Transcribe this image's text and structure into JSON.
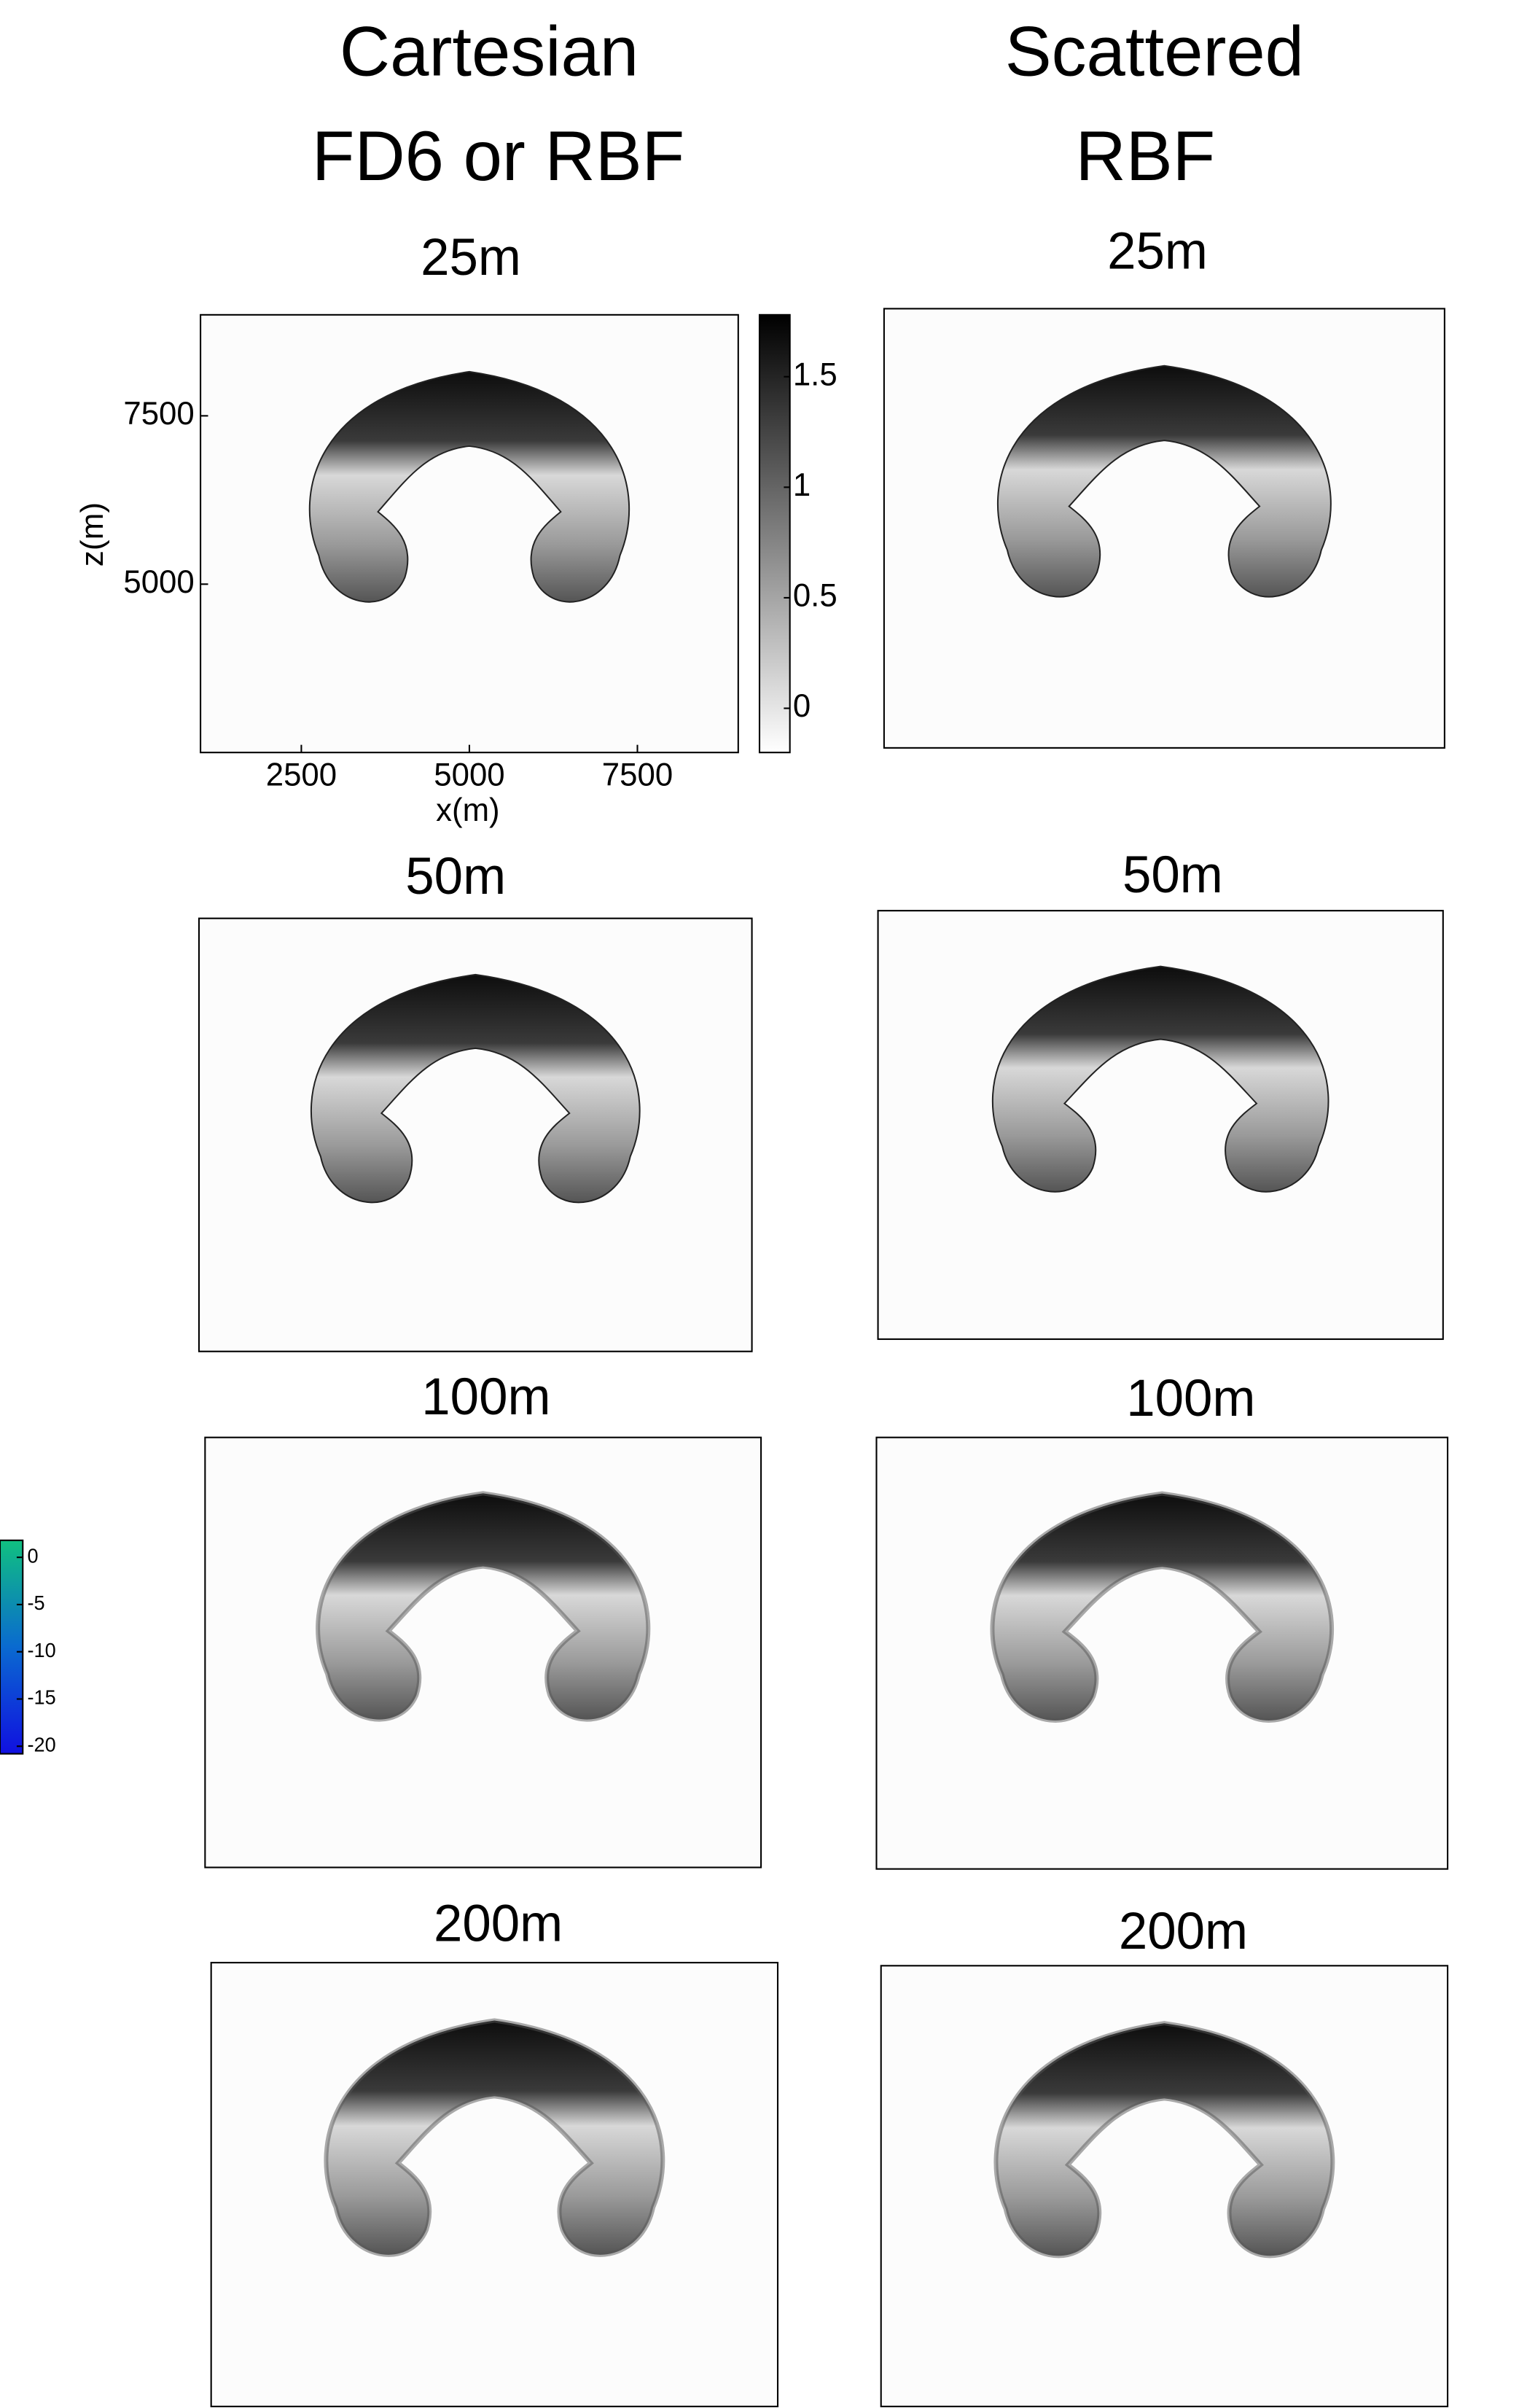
{
  "columns": [
    {
      "title": "Cartesian",
      "subtitle": "FD6 or RBF",
      "panels": [
        "25m",
        "50m",
        "100m",
        "200m"
      ]
    },
    {
      "title": "Scattered",
      "subtitle": "RBF",
      "panels": [
        "25m",
        "50m",
        "100m",
        "200m"
      ]
    }
  ],
  "axes": {
    "xlabel": "x(m)",
    "ylabel": "z(m)",
    "xlim": [
      1000,
      9000
    ],
    "xticks": [
      2500,
      5000,
      7500
    ],
    "ylim": [
      2500,
      9000
    ],
    "yticks": [
      5000,
      7500
    ]
  },
  "colorbar": {
    "lim": [
      -0.2,
      1.78
    ],
    "ticks": [
      0,
      0.5,
      1,
      1.5
    ]
  },
  "colorbar2": {
    "lim": [
      -20.8,
      1.8
    ],
    "ticks": [
      0,
      -5,
      -10,
      -15,
      -20
    ]
  }
}
